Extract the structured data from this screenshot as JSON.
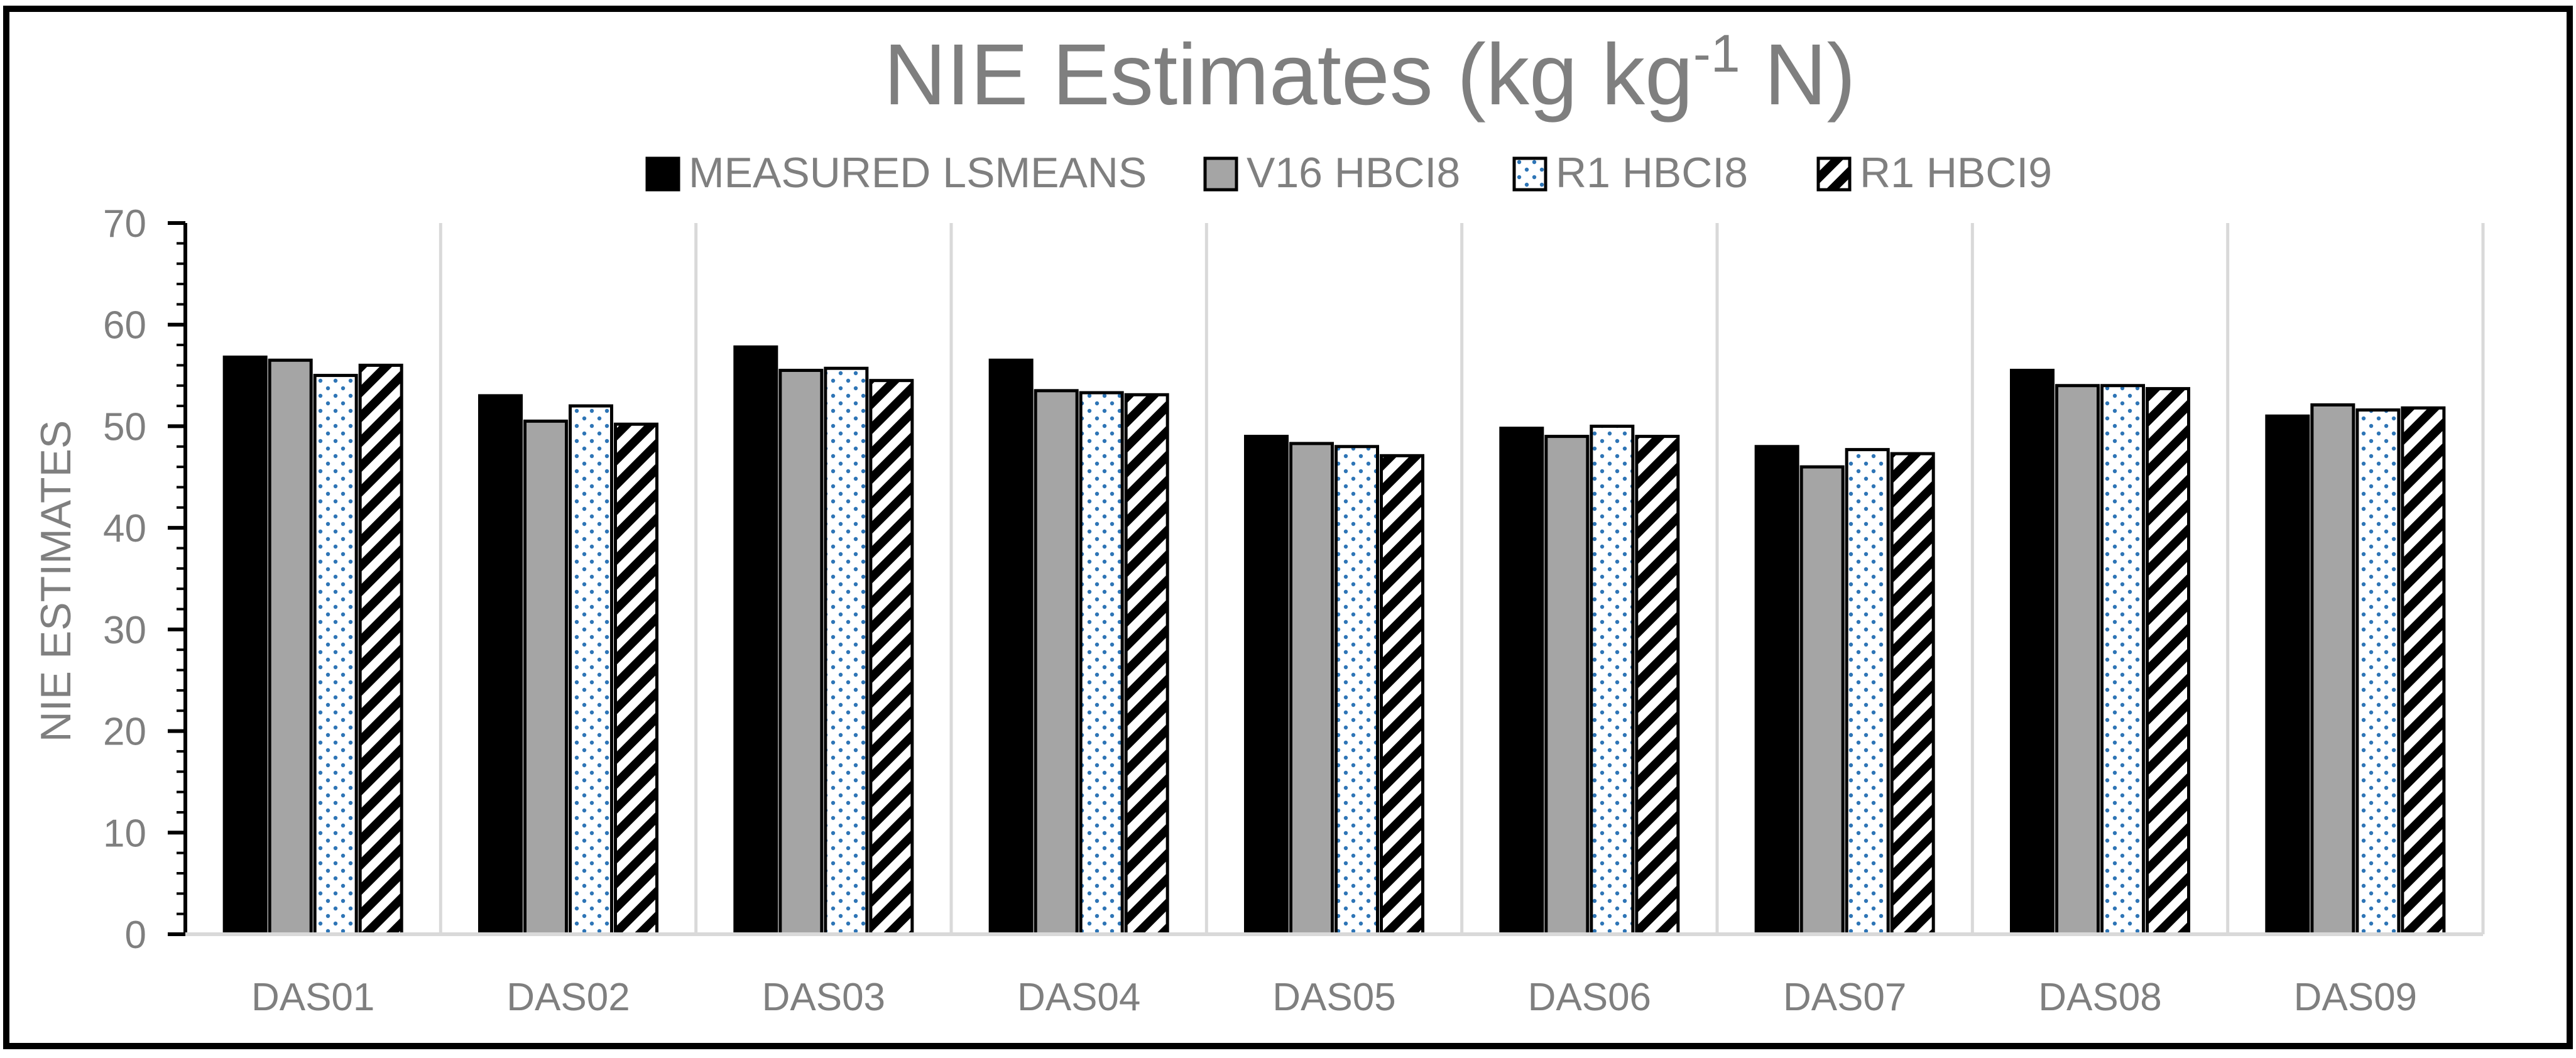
{
  "chart_data": {
    "type": "bar",
    "title_main": "NIE Estimates (kg kg",
    "title_sup": "-1",
    "title_tail": " N)",
    "xlabel": "",
    "ylabel": "NIE ESTIMATES",
    "ylim": [
      0,
      70
    ],
    "y_ticks": [
      0,
      10,
      20,
      30,
      40,
      50,
      60,
      70
    ],
    "y_tick_labels": [
      "0",
      "10",
      "20",
      "30",
      "40",
      "50",
      "60",
      "70"
    ],
    "grid": "vertical category separators",
    "legend_position": "top",
    "categories": [
      "DAS01",
      "DAS02",
      "DAS03",
      "DAS04",
      "DAS05",
      "DAS06",
      "DAS07",
      "DAS08",
      "DAS09"
    ],
    "series": [
      {
        "name": "MEASURED LSMEANS",
        "pattern": "solid-black",
        "values": [
          56.8,
          53.0,
          57.8,
          56.5,
          49.0,
          49.8,
          48.0,
          55.5,
          51.0
        ]
      },
      {
        "name": "V16 HBCI8",
        "pattern": "solid-gray",
        "values": [
          56.5,
          50.5,
          55.5,
          53.5,
          48.3,
          49.0,
          46.0,
          54.0,
          52.1
        ]
      },
      {
        "name": "R1 HBCI8",
        "pattern": "blue-dots",
        "values": [
          55.0,
          52.0,
          55.7,
          53.3,
          48.0,
          50.0,
          47.7,
          54.0,
          51.6
        ]
      },
      {
        "name": "R1 HBCI9",
        "pattern": "black-diagonal",
        "values": [
          56.0,
          50.2,
          54.5,
          53.1,
          47.1,
          49.0,
          47.3,
          53.7,
          51.8
        ]
      }
    ]
  },
  "colors": {
    "text": "#7f7f7f",
    "solid_black": "#000000",
    "solid_gray": "#a5a5a5",
    "dots": "#2e75b6",
    "grid": "#d9d9d9",
    "frame": "#000000"
  }
}
